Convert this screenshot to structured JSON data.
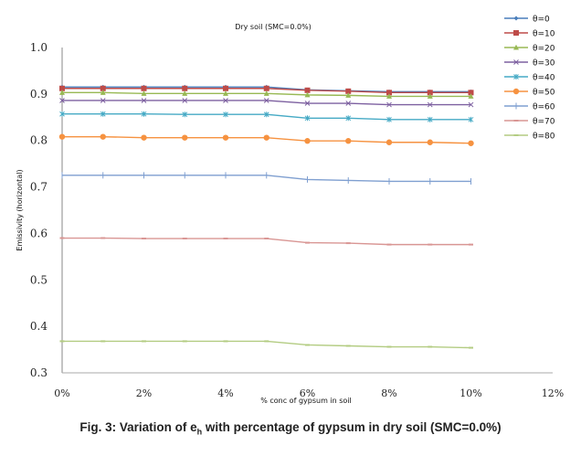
{
  "chart_data": {
    "type": "line",
    "title": "Dry soil  (SMC=0.0%)",
    "xlabel": "% conc of gypsum in soil",
    "ylabel": "Emissivity (horizontal)",
    "x": [
      0,
      1,
      2,
      3,
      4,
      5,
      6,
      7,
      8,
      9,
      10
    ],
    "xlim": [
      0,
      12
    ],
    "ylim": [
      0.3,
      1.0
    ],
    "xticks": [
      "0%",
      "2%",
      "4%",
      "6%",
      "8%",
      "10%",
      "12%"
    ],
    "xtick_values": [
      0,
      2,
      4,
      6,
      8,
      10,
      12
    ],
    "yticks": [
      "0.3",
      "0.4",
      "0.5",
      "0.6",
      "0.7",
      "0.8",
      "0.9",
      "1.0"
    ],
    "ytick_values": [
      0.3,
      0.4,
      0.5,
      0.6,
      0.7,
      0.8,
      0.9,
      1.0
    ],
    "grid": false,
    "legend_position": "right",
    "series": [
      {
        "name": "θ=0",
        "color": "#4a7ebb",
        "marker": "diamond",
        "values": [
          0.915,
          0.915,
          0.915,
          0.915,
          0.915,
          0.915,
          0.909,
          0.907,
          0.905,
          0.905,
          0.905
        ]
      },
      {
        "name": "θ=10",
        "color": "#be4b48",
        "marker": "square",
        "values": [
          0.912,
          0.912,
          0.912,
          0.912,
          0.912,
          0.912,
          0.908,
          0.906,
          0.903,
          0.903,
          0.903
        ]
      },
      {
        "name": "θ=20",
        "color": "#98b954",
        "marker": "triangle",
        "values": [
          0.903,
          0.903,
          0.901,
          0.901,
          0.901,
          0.901,
          0.898,
          0.897,
          0.895,
          0.895,
          0.895
        ]
      },
      {
        "name": "θ=30",
        "color": "#7d60a0",
        "marker": "x",
        "values": [
          0.886,
          0.886,
          0.886,
          0.886,
          0.886,
          0.886,
          0.88,
          0.88,
          0.877,
          0.877,
          0.877
        ]
      },
      {
        "name": "θ=40",
        "color": "#46aac5",
        "marker": "star",
        "values": [
          0.857,
          0.857,
          0.857,
          0.856,
          0.856,
          0.856,
          0.848,
          0.848,
          0.845,
          0.845,
          0.845
        ]
      },
      {
        "name": "θ=50",
        "color": "#f69240",
        "marker": "circle",
        "values": [
          0.808,
          0.808,
          0.806,
          0.806,
          0.806,
          0.806,
          0.799,
          0.799,
          0.796,
          0.796,
          0.794
        ]
      },
      {
        "name": "θ=60",
        "color": "#7f9fd0",
        "marker": "plus",
        "values": [
          0.725,
          0.725,
          0.725,
          0.725,
          0.725,
          0.725,
          0.716,
          0.714,
          0.712,
          0.712,
          0.712
        ]
      },
      {
        "name": "θ=70",
        "color": "#d99694",
        "marker": "dash",
        "values": [
          0.59,
          0.59,
          0.589,
          0.589,
          0.589,
          0.589,
          0.58,
          0.579,
          0.576,
          0.576,
          0.576
        ]
      },
      {
        "name": "θ=80",
        "color": "#b3cc82",
        "marker": "dash",
        "values": [
          0.368,
          0.368,
          0.368,
          0.368,
          0.368,
          0.368,
          0.36,
          0.358,
          0.356,
          0.356,
          0.354
        ]
      }
    ]
  },
  "caption": {
    "prefix": "Fig. 3: Variation of e",
    "subscript": "h",
    "suffix": " with percentage of gypsum in dry soil (SMC=0.0%)"
  }
}
